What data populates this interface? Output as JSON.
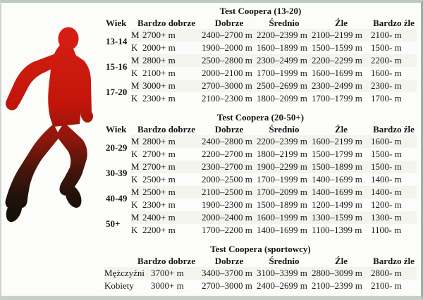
{
  "page": {
    "background": "#fcfcfa",
    "frame_color": "#c6cfc9",
    "text_color": "#161616",
    "runner_red": "#d92114",
    "runner_dark": "#120d08"
  },
  "runner": {
    "alt": "running-man-silhouette"
  },
  "sections": [
    {
      "title": "Test Coopera (13-20)",
      "headers": [
        "Wiek",
        "Bardzo dobrze",
        "Dobrze",
        "Średnio",
        "Źle",
        "Bardzo źle"
      ],
      "groups": [
        {
          "age": "13-14",
          "rows": [
            {
              "sex": "M",
              "values": [
                "2700+ m",
                "2400–2700 m",
                "2200–2399 m",
                "2100–2199 m",
                "2100- m"
              ]
            },
            {
              "sex": "K",
              "values": [
                "2000+ m",
                "1900–2000 m",
                "1600–1899 m",
                "1500–1599 m",
                "1500- m"
              ]
            }
          ]
        },
        {
          "age": "15-16",
          "rows": [
            {
              "sex": "M",
              "values": [
                "2800+ m",
                "2500–2800 m",
                "2300–2499 m",
                "2200–2299 m",
                "2200- m"
              ]
            },
            {
              "sex": "K",
              "values": [
                "2100+ m",
                "2000–2100 m",
                "1700–1999 m",
                "1600–1699 m",
                "1600- m"
              ]
            }
          ]
        },
        {
          "age": "17-20",
          "rows": [
            {
              "sex": "M",
              "values": [
                "3000+ m",
                "2700–3000 m",
                "2500–2699 m",
                "2300–2499 m",
                "2300- m"
              ]
            },
            {
              "sex": "K",
              "values": [
                "2300+ m",
                "2100–2300 m",
                "1800–2099 m",
                "1700–1799 m",
                "1700- m"
              ]
            }
          ]
        }
      ]
    },
    {
      "title": "Test Coopera (20-50+)",
      "headers": [
        "Wiek",
        "Bardzo dobrze",
        "Dobrze",
        "Średnio",
        "Źle",
        "Bardzo źle"
      ],
      "groups": [
        {
          "age": "20-29",
          "rows": [
            {
              "sex": "M",
              "values": [
                "2800+ m",
                "2400–2800 m",
                "2200–2399 m",
                "1600–2199 m",
                "1600- m"
              ]
            },
            {
              "sex": "K",
              "values": [
                "2700+ m",
                "2200–2700 m",
                "1800–2199 m",
                "1500–1799 m",
                "1500- m"
              ]
            }
          ]
        },
        {
          "age": "30-39",
          "rows": [
            {
              "sex": "M",
              "values": [
                "2700+ m",
                "2300–2700 m",
                "1900–2299 m",
                "1500–1899 m",
                "1500- m"
              ]
            },
            {
              "sex": "K",
              "values": [
                "2500+ m",
                "2000–2500 m",
                "1700–1999 m",
                "1400–1699 m",
                "1400- m"
              ]
            }
          ]
        },
        {
          "age": "40-49",
          "rows": [
            {
              "sex": "M",
              "values": [
                "2500+ m",
                "2100–2500 m",
                "1700–2099 m",
                "1400–1699 m",
                "1400- m"
              ]
            },
            {
              "sex": "K",
              "values": [
                "2300+ m",
                "1900–2300 m",
                "1500–1899 m",
                "1200–1499 m",
                "1200- m"
              ]
            }
          ]
        },
        {
          "age": "50+",
          "rows": [
            {
              "sex": "M",
              "values": [
                "2400+ m",
                "2000–2400 m",
                "1600–1999 m",
                "1300–1599 m",
                "1300- m"
              ]
            },
            {
              "sex": "K",
              "values": [
                "2200+ m",
                "1700–2200 m",
                "1400–1699 m",
                "1100–1399 m",
                "1100- m"
              ]
            }
          ]
        }
      ]
    },
    {
      "title": "Test Coopera (sportowcy)",
      "headers": [
        "",
        "Bardzo dobrze",
        "Dobrze",
        "Średnio",
        "Źle",
        "Bardzo źle"
      ],
      "athlete_rows": [
        {
          "label": "Mężczyźni",
          "values": [
            "3700+ m",
            "3400–3700 m",
            "3100–3399 m",
            "2800–3099 m",
            "2800- m"
          ]
        },
        {
          "label": "Kobiety",
          "values": [
            "3000+ m",
            "2700–3000 m",
            "2400–2699 m",
            "2100–2399 m",
            "2100- m"
          ]
        }
      ]
    }
  ]
}
